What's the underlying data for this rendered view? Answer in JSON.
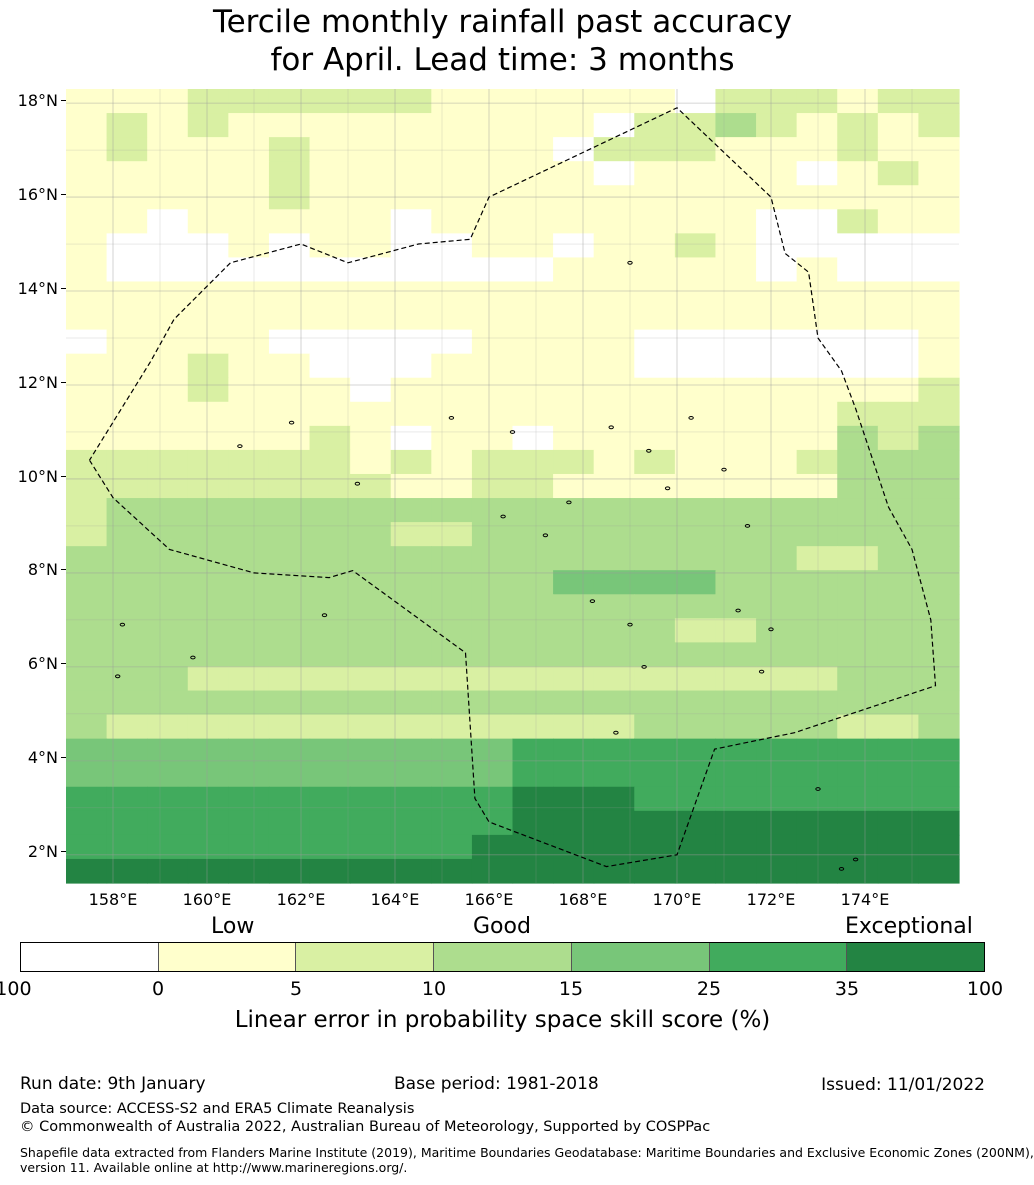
{
  "title": {
    "line1": "Tercile monthly rainfall past accuracy",
    "line2": "for April. Lead time: 3 months"
  },
  "map": {
    "lat_labels": [
      "18°N",
      "16°N",
      "14°N",
      "12°N",
      "10°N",
      "8°N",
      "6°N",
      "4°N",
      "2°N"
    ],
    "lon_labels": [
      "158°E",
      "160°E",
      "162°E",
      "164°E",
      "166°E",
      "168°E",
      "170°E",
      "172°E",
      "174°E"
    ],
    "extent": {
      "lon_min": 157.0,
      "lon_max": 176.0,
      "lat_min": 1.4,
      "lat_max": 18.3
    },
    "cell_size_deg": 0.833,
    "skill_grid_rows_north_to_south": [
      "1112222221111110222122",
      "1212111111111022321212",
      "1211121111110222111211",
      "1111121111111011110121",
      "1111121111111111111111",
      "1101111101111111100211",
      "1000101100110112100000",
      "1000000000001111101000",
      "1111111111111111111111",
      "1111111111111111111111",
      "0111100000111100000001",
      "1112110001111100000001",
      "1112111011111111111112",
      "1111111111111111111222",
      "1111112101101111111323",
      "2222222121222121112333",
      "2222222211221111111333",
      "2333333333333333333333",
      "2333333322333333333333",
      "3333333333333333332233",
      "3333333333334444333333",
      "3333333333333333333333",
      "3333333333333332233333",
      "3333333333333333333333",
      "3332222222222222222333",
      "3333333333333333333333",
      "3222222222222233333223",
      "4444444444455555555555",
      "4444444444455555555555",
      "5555555555566655555555",
      "5555555555566666666666",
      "5555555555666666666666",
      "6666666666666666666666"
    ],
    "eez_boundary": [
      [
        157.5,
        10.4
      ],
      [
        158.0,
        9.6
      ],
      [
        159.2,
        8.5
      ],
      [
        161.0,
        8.0
      ],
      [
        162.6,
        7.9
      ],
      [
        163.1,
        8.05
      ],
      [
        165.5,
        6.3
      ],
      [
        165.7,
        3.2
      ],
      [
        166.0,
        2.7
      ],
      [
        168.5,
        1.75
      ],
      [
        170.0,
        2.0
      ],
      [
        170.8,
        4.25
      ],
      [
        172.5,
        4.6
      ],
      [
        175.5,
        5.6
      ],
      [
        175.4,
        7.0
      ],
      [
        175.0,
        8.5
      ],
      [
        174.5,
        9.4
      ],
      [
        173.8,
        11.5
      ],
      [
        173.5,
        12.3
      ],
      [
        173.0,
        13.0
      ],
      [
        172.8,
        14.4
      ],
      [
        172.3,
        14.8
      ],
      [
        172.0,
        16.0
      ],
      [
        170.0,
        17.9
      ],
      [
        166.0,
        16.0
      ],
      [
        165.6,
        15.1
      ],
      [
        164.5,
        15.0
      ],
      [
        163.0,
        14.6
      ],
      [
        162.0,
        15.0
      ],
      [
        160.5,
        14.6
      ],
      [
        159.3,
        13.4
      ],
      [
        158.8,
        12.5
      ],
      [
        157.5,
        10.4
      ]
    ],
    "islands": [
      [
        158.2,
        6.9
      ],
      [
        159.7,
        6.2
      ],
      [
        162.5,
        7.1
      ],
      [
        161.8,
        11.2
      ],
      [
        163.2,
        9.9
      ],
      [
        165.2,
        11.3
      ],
      [
        167.2,
        8.8
      ],
      [
        168.2,
        7.4
      ],
      [
        169.0,
        6.9
      ],
      [
        169.3,
        6.0
      ],
      [
        171.3,
        7.2
      ],
      [
        172.0,
        6.8
      ],
      [
        173.5,
        1.7
      ],
      [
        173.8,
        1.9
      ],
      [
        166.5,
        11.0
      ],
      [
        169.8,
        9.8
      ],
      [
        169.4,
        10.6
      ],
      [
        170.3,
        11.3
      ],
      [
        171.8,
        5.9
      ],
      [
        173.0,
        3.4
      ],
      [
        166.3,
        9.2
      ],
      [
        169.0,
        14.6
      ],
      [
        168.7,
        4.6
      ],
      [
        158.1,
        5.8
      ],
      [
        171.0,
        10.2
      ],
      [
        167.7,
        9.5
      ],
      [
        171.5,
        9.0
      ],
      [
        160.7,
        10.7
      ],
      [
        168.6,
        11.1
      ]
    ]
  },
  "legend": {
    "categories": [
      "Low",
      "Good",
      "Exceptional"
    ],
    "ticks": [
      "-100",
      "0",
      "5",
      "10",
      "15",
      "25",
      "35",
      "100"
    ],
    "colors": [
      "#ffffff",
      "#ffffcc",
      "#d9f0a3",
      "#addd8e",
      "#78c679",
      "#41ab5d",
      "#238443"
    ],
    "label": "Linear error in probability space skill score (%)"
  },
  "footer": {
    "run_date": "Run date: 9th January",
    "base_period": "Base period: 1981-2018",
    "issued": "Issued: 11/01/2022",
    "data_source": "Data source: ACCESS-S2 and ERA5 Climate Reanalysis",
    "copyright": "© Commonwealth of Australia 2022, Australian Bureau of Meteorology, Supported by COSPPac",
    "shapefile_1": "Shapefile data extracted from Flanders Marine Institute (2019), Maritime Boundaries Geodatabase: Maritime Boundaries and Exclusive Economic Zones (200NM),",
    "shapefile_2": "version 11. Available online at http://www.marineregions.org/."
  }
}
